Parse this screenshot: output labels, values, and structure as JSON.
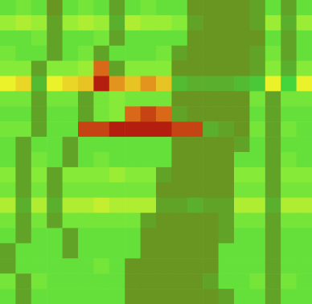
{
  "chart_data": {
    "type": "heatmap",
    "tick_labels": false,
    "zlim": [
      0,
      1
    ],
    "cells": [
      [
        0.4,
        0.45,
        0.4,
        0.05,
        0.4,
        0.45,
        0.4,
        0.1,
        0.4,
        0.45,
        0.4,
        0.4,
        0.05,
        0.05,
        0.05,
        0.05,
        0.1,
        0.4,
        0.1,
        0.4
      ],
      [
        0.55,
        0.6,
        0.55,
        0.1,
        0.55,
        0.6,
        0.55,
        0.15,
        0.6,
        0.55,
        0.55,
        0.5,
        0.1,
        0.05,
        0.05,
        0.05,
        0.1,
        0.55,
        0.15,
        0.55
      ],
      [
        0.4,
        0.4,
        0.45,
        0.1,
        0.4,
        0.4,
        0.45,
        0.1,
        0.4,
        0.4,
        0.4,
        0.4,
        0.05,
        0.05,
        0.05,
        0.05,
        0.05,
        0.4,
        0.1,
        0.4
      ],
      [
        0.45,
        0.4,
        0.4,
        0.1,
        0.4,
        0.45,
        0.1,
        0.4,
        0.4,
        0.4,
        0.45,
        0.1,
        0.05,
        0.05,
        0.05,
        0.05,
        0.1,
        0.45,
        0.1,
        0.4
      ],
      [
        0.5,
        0.5,
        0.1,
        0.5,
        0.5,
        0.55,
        0.9,
        0.1,
        0.5,
        0.5,
        0.5,
        0.05,
        0.05,
        0.05,
        0.05,
        0.05,
        0.1,
        0.5,
        0.15,
        0.5
      ],
      [
        0.75,
        0.78,
        0.2,
        0.75,
        0.78,
        0.8,
        1.0,
        0.85,
        0.8,
        0.85,
        0.8,
        0.2,
        0.15,
        0.15,
        0.15,
        0.2,
        0.25,
        0.75,
        0.3,
        0.75
      ],
      [
        0.45,
        0.45,
        0.1,
        0.45,
        0.45,
        0.1,
        0.45,
        0.5,
        0.45,
        0.45,
        0.45,
        0.05,
        0.05,
        0.05,
        0.05,
        0.05,
        0.45,
        0.1,
        0.45,
        0.45
      ],
      [
        0.4,
        0.4,
        0.1,
        0.4,
        0.4,
        0.1,
        0.45,
        0.5,
        0.9,
        0.95,
        0.9,
        0.1,
        0.05,
        0.05,
        0.05,
        0.05,
        0.4,
        0.1,
        0.4,
        0.4
      ],
      [
        0.45,
        0.45,
        0.1,
        0.4,
        0.4,
        0.95,
        0.95,
        1.0,
        1.0,
        1.0,
        1.0,
        0.95,
        0.95,
        0.15,
        0.1,
        0.05,
        0.45,
        0.1,
        0.45,
        0.4
      ],
      [
        0.4,
        0.1,
        0.4,
        0.4,
        0.1,
        0.4,
        0.4,
        0.4,
        0.4,
        0.4,
        0.4,
        0.05,
        0.05,
        0.05,
        0.05,
        0.1,
        0.4,
        0.1,
        0.4,
        0.4
      ],
      [
        0.4,
        0.1,
        0.45,
        0.4,
        0.1,
        0.4,
        0.45,
        0.4,
        0.4,
        0.4,
        0.4,
        0.05,
        0.05,
        0.05,
        0.05,
        0.4,
        0.4,
        0.1,
        0.45,
        0.4
      ],
      [
        0.5,
        0.1,
        0.5,
        0.1,
        0.5,
        0.5,
        0.5,
        0.55,
        0.5,
        0.5,
        0.1,
        0.05,
        0.05,
        0.05,
        0.05,
        0.5,
        0.5,
        0.1,
        0.5,
        0.5
      ],
      [
        0.45,
        0.1,
        0.45,
        0.1,
        0.45,
        0.45,
        0.45,
        0.45,
        0.45,
        0.45,
        0.05,
        0.05,
        0.05,
        0.05,
        0.05,
        0.45,
        0.45,
        0.1,
        0.45,
        0.45
      ],
      [
        0.6,
        0.15,
        0.6,
        0.15,
        0.6,
        0.6,
        0.65,
        0.6,
        0.6,
        0.6,
        0.1,
        0.1,
        0.15,
        0.1,
        0.1,
        0.6,
        0.6,
        0.15,
        0.6,
        0.6
      ],
      [
        0.45,
        0.1,
        0.45,
        0.1,
        0.45,
        0.45,
        0.45,
        0.45,
        0.45,
        0.1,
        0.05,
        0.05,
        0.05,
        0.05,
        0.1,
        0.45,
        0.45,
        0.1,
        0.45,
        0.45
      ],
      [
        0.4,
        0.1,
        0.4,
        0.4,
        0.1,
        0.4,
        0.4,
        0.4,
        0.4,
        0.05,
        0.05,
        0.05,
        0.05,
        0.05,
        0.1,
        0.4,
        0.4,
        0.1,
        0.4,
        0.4
      ],
      [
        0.1,
        0.4,
        0.4,
        0.4,
        0.1,
        0.4,
        0.4,
        0.4,
        0.4,
        0.05,
        0.05,
        0.05,
        0.05,
        0.05,
        0.4,
        0.4,
        0.4,
        0.1,
        0.4,
        0.4
      ],
      [
        0.1,
        0.4,
        0.4,
        0.4,
        0.4,
        0.4,
        0.45,
        0.4,
        0.05,
        0.05,
        0.05,
        0.05,
        0.05,
        0.05,
        0.4,
        0.4,
        0.4,
        0.1,
        0.4,
        0.4
      ],
      [
        0.45,
        0.1,
        0.45,
        0.4,
        0.4,
        0.4,
        0.4,
        0.4,
        0.05,
        0.05,
        0.05,
        0.05,
        0.05,
        0.1,
        0.4,
        0.4,
        0.45,
        0.1,
        0.45,
        0.4
      ],
      [
        0.4,
        0.1,
        0.4,
        0.4,
        0.4,
        0.4,
        0.4,
        0.4,
        0.05,
        0.05,
        0.05,
        0.05,
        0.05,
        0.05,
        0.1,
        0.4,
        0.4,
        0.1,
        0.4,
        0.4
      ]
    ]
  }
}
